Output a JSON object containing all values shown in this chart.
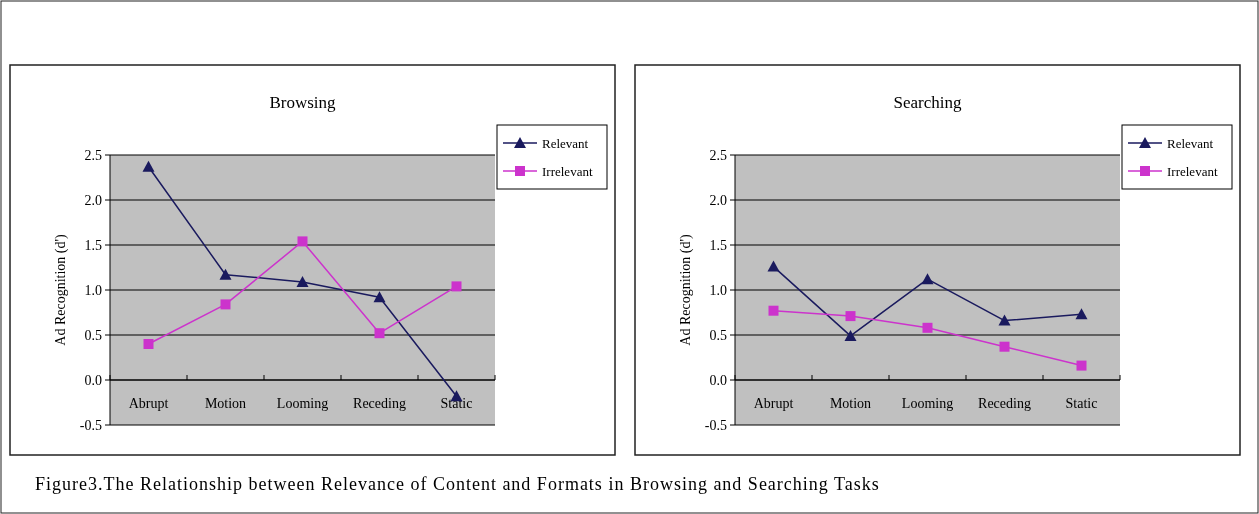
{
  "chart_data": [
    {
      "type": "line",
      "title": "Browsing",
      "ylabel": "Ad Recognition (d')",
      "categories": [
        "Abrupt",
        "Motion",
        "Looming",
        "Receding",
        "Static"
      ],
      "series": [
        {
          "name": "Relevant",
          "color": "#1a1a5e",
          "marker": "triangle",
          "values": [
            2.37,
            1.17,
            1.09,
            0.92,
            -0.18
          ]
        },
        {
          "name": "Irrelevant",
          "color": "#cc33cc",
          "marker": "square",
          "values": [
            0.4,
            0.84,
            1.54,
            0.52,
            1.04
          ]
        }
      ],
      "ylim": [
        -0.5,
        2.5
      ],
      "yticks": [
        {
          "value": -0.5,
          "label": "-0.5"
        },
        {
          "value": 0,
          "label": "0.0"
        },
        {
          "value": 0.5,
          "label": "0.5"
        },
        {
          "value": 1,
          "label": "1.0"
        },
        {
          "value": 1.5,
          "label": "1.5"
        },
        {
          "value": 2,
          "label": "2.0"
        },
        {
          "value": 2.5,
          "label": "2.5"
        }
      ],
      "grid": "y",
      "legend": "top right",
      "annotations": [
        "Figure3.The Relationship between Relevance of Content and Formats in Browsing and Searching Tasks"
      ]
    },
    {
      "type": "line",
      "title": "Searching",
      "ylabel": "Ad Recognition (d')",
      "categories": [
        "Abrupt",
        "Motion",
        "Looming",
        "Receding",
        "Static"
      ],
      "series": [
        {
          "name": "Relevant",
          "color": "#1a1a5e",
          "marker": "triangle",
          "values": [
            1.26,
            0.49,
            1.12,
            0.66,
            0.73
          ]
        },
        {
          "name": "Irrelevant",
          "color": "#cc33cc",
          "marker": "square",
          "values": [
            0.77,
            0.71,
            0.58,
            0.37,
            0.16
          ]
        }
      ],
      "ylim": [
        -0.5,
        2.5
      ],
      "yticks": [
        {
          "value": -0.5,
          "label": "-0.5"
        },
        {
          "value": 0,
          "label": "0.0"
        },
        {
          "value": 0.5,
          "label": "0.5"
        },
        {
          "value": 1,
          "label": "1.0"
        },
        {
          "value": 1.5,
          "label": "1.5"
        },
        {
          "value": 2,
          "label": "2.0"
        },
        {
          "value": 2.5,
          "label": "2.5"
        }
      ],
      "grid": "y",
      "legend": "top right"
    }
  ]
}
